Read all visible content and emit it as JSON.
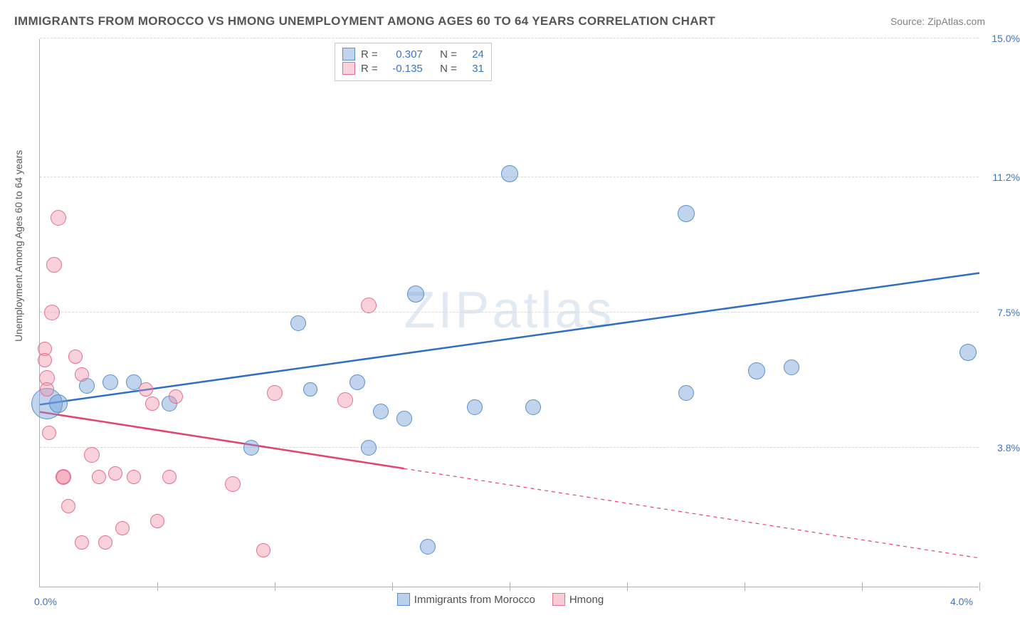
{
  "title": "IMMIGRANTS FROM MOROCCO VS HMONG UNEMPLOYMENT AMONG AGES 60 TO 64 YEARS CORRELATION CHART",
  "source": "Source: ZipAtlas.com",
  "ylabel": "Unemployment Among Ages 60 to 64 years",
  "watermark": "ZIPatlas",
  "chart": {
    "type": "scatter",
    "background_color": "#ffffff",
    "grid_color": "#d8d8d8",
    "axis_color": "#b0b0b0",
    "xlim": [
      0.0,
      4.0
    ],
    "ylim": [
      0.0,
      15.0
    ],
    "x_origin_label": "0.0%",
    "x_max_label": "4.0%",
    "x_label_color": "#3b74c0",
    "x_ticks": [
      0.5,
      1.0,
      1.5,
      2.0,
      2.5,
      3.0,
      3.5,
      4.0
    ],
    "y_ticks": [
      {
        "v": 3.8,
        "label": "3.8%",
        "color": "#3b74c0"
      },
      {
        "v": 7.5,
        "label": "7.5%",
        "color": "#3b74c0"
      },
      {
        "v": 11.2,
        "label": "11.2%",
        "color": "#3b74c0"
      },
      {
        "v": 15.0,
        "label": "15.0%",
        "color": "#3b74c0"
      }
    ],
    "series": [
      {
        "name": "Immigrants from Morocco",
        "fill": "rgba(115,160,215,0.45)",
        "stroke": "#5b8fc9",
        "trend_color": "#2f6fc2",
        "r_label": "R =",
        "r_value": "0.307",
        "n_label": "N =",
        "n_value": "24",
        "trend": {
          "x1": 0.0,
          "y1": 5.0,
          "x2": 4.0,
          "y2": 8.6,
          "solid_until": 4.0
        },
        "points": [
          {
            "x": 0.03,
            "y": 5.0,
            "s": 22
          },
          {
            "x": 0.08,
            "y": 5.0,
            "s": 13
          },
          {
            "x": 0.2,
            "y": 5.5,
            "s": 11
          },
          {
            "x": 0.3,
            "y": 5.6,
            "s": 11
          },
          {
            "x": 0.4,
            "y": 5.6,
            "s": 11
          },
          {
            "x": 0.55,
            "y": 5.0,
            "s": 11
          },
          {
            "x": 0.9,
            "y": 3.8,
            "s": 11
          },
          {
            "x": 1.1,
            "y": 7.2,
            "s": 11
          },
          {
            "x": 1.15,
            "y": 5.4,
            "s": 10
          },
          {
            "x": 1.35,
            "y": 5.6,
            "s": 11
          },
          {
            "x": 1.45,
            "y": 4.8,
            "s": 11
          },
          {
            "x": 1.4,
            "y": 3.8,
            "s": 11
          },
          {
            "x": 1.55,
            "y": 4.6,
            "s": 11
          },
          {
            "x": 1.6,
            "y": 8.0,
            "s": 12
          },
          {
            "x": 1.65,
            "y": 1.1,
            "s": 11
          },
          {
            "x": 1.85,
            "y": 4.9,
            "s": 11
          },
          {
            "x": 2.0,
            "y": 11.3,
            "s": 12
          },
          {
            "x": 2.1,
            "y": 4.9,
            "s": 11
          },
          {
            "x": 2.75,
            "y": 10.2,
            "s": 12
          },
          {
            "x": 2.75,
            "y": 5.3,
            "s": 11
          },
          {
            "x": 3.05,
            "y": 5.9,
            "s": 12
          },
          {
            "x": 3.2,
            "y": 6.0,
            "s": 11
          },
          {
            "x": 3.95,
            "y": 6.4,
            "s": 12
          }
        ]
      },
      {
        "name": "Hmong",
        "fill": "rgba(240,140,165,0.40)",
        "stroke": "#e2718f",
        "trend_color": "#e2446f",
        "r_label": "R =",
        "r_value": "-0.135",
        "n_label": "N =",
        "n_value": "31",
        "trend": {
          "x1": 0.0,
          "y1": 4.8,
          "x2": 4.0,
          "y2": 0.8,
          "solid_until": 1.55
        },
        "points": [
          {
            "x": 0.02,
            "y": 6.5,
            "s": 10
          },
          {
            "x": 0.02,
            "y": 6.2,
            "s": 10
          },
          {
            "x": 0.03,
            "y": 5.7,
            "s": 11
          },
          {
            "x": 0.03,
            "y": 5.4,
            "s": 10
          },
          {
            "x": 0.04,
            "y": 4.2,
            "s": 10
          },
          {
            "x": 0.05,
            "y": 7.5,
            "s": 11
          },
          {
            "x": 0.06,
            "y": 8.8,
            "s": 11
          },
          {
            "x": 0.08,
            "y": 10.1,
            "s": 11
          },
          {
            "x": 0.1,
            "y": 3.0,
            "s": 11
          },
          {
            "x": 0.1,
            "y": 3.0,
            "s": 10
          },
          {
            "x": 0.12,
            "y": 2.2,
            "s": 10
          },
          {
            "x": 0.18,
            "y": 1.2,
            "s": 10
          },
          {
            "x": 0.15,
            "y": 6.3,
            "s": 10
          },
          {
            "x": 0.18,
            "y": 5.8,
            "s": 10
          },
          {
            "x": 0.22,
            "y": 3.6,
            "s": 11
          },
          {
            "x": 0.25,
            "y": 3.0,
            "s": 10
          },
          {
            "x": 0.28,
            "y": 1.2,
            "s": 10
          },
          {
            "x": 0.32,
            "y": 3.1,
            "s": 10
          },
          {
            "x": 0.35,
            "y": 1.6,
            "s": 10
          },
          {
            "x": 0.4,
            "y": 3.0,
            "s": 10
          },
          {
            "x": 0.45,
            "y": 5.4,
            "s": 10
          },
          {
            "x": 0.48,
            "y": 5.0,
            "s": 10
          },
          {
            "x": 0.5,
            "y": 1.8,
            "s": 10
          },
          {
            "x": 0.55,
            "y": 3.0,
            "s": 10
          },
          {
            "x": 0.58,
            "y": 5.2,
            "s": 10
          },
          {
            "x": 0.82,
            "y": 2.8,
            "s": 11
          },
          {
            "x": 0.95,
            "y": 1.0,
            "s": 10
          },
          {
            "x": 1.0,
            "y": 5.3,
            "s": 11
          },
          {
            "x": 1.3,
            "y": 5.1,
            "s": 11
          },
          {
            "x": 1.4,
            "y": 7.7,
            "s": 11
          }
        ]
      }
    ],
    "bottom_legend": [
      {
        "label": "Immigrants from Morocco",
        "fill": "rgba(115,160,215,0.5)",
        "stroke": "#5b8fc9"
      },
      {
        "label": "Hmong",
        "fill": "rgba(240,140,165,0.45)",
        "stroke": "#e2718f"
      }
    ]
  }
}
